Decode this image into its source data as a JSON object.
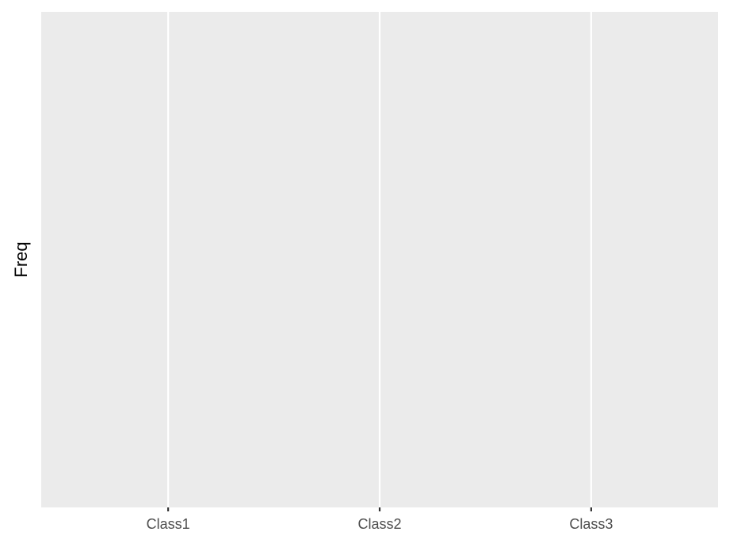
{
  "chart_data": {
    "type": "bar",
    "categories": [
      "Class1",
      "Class2",
      "Class3"
    ],
    "y_label": "Freq",
    "grid": true
  }
}
